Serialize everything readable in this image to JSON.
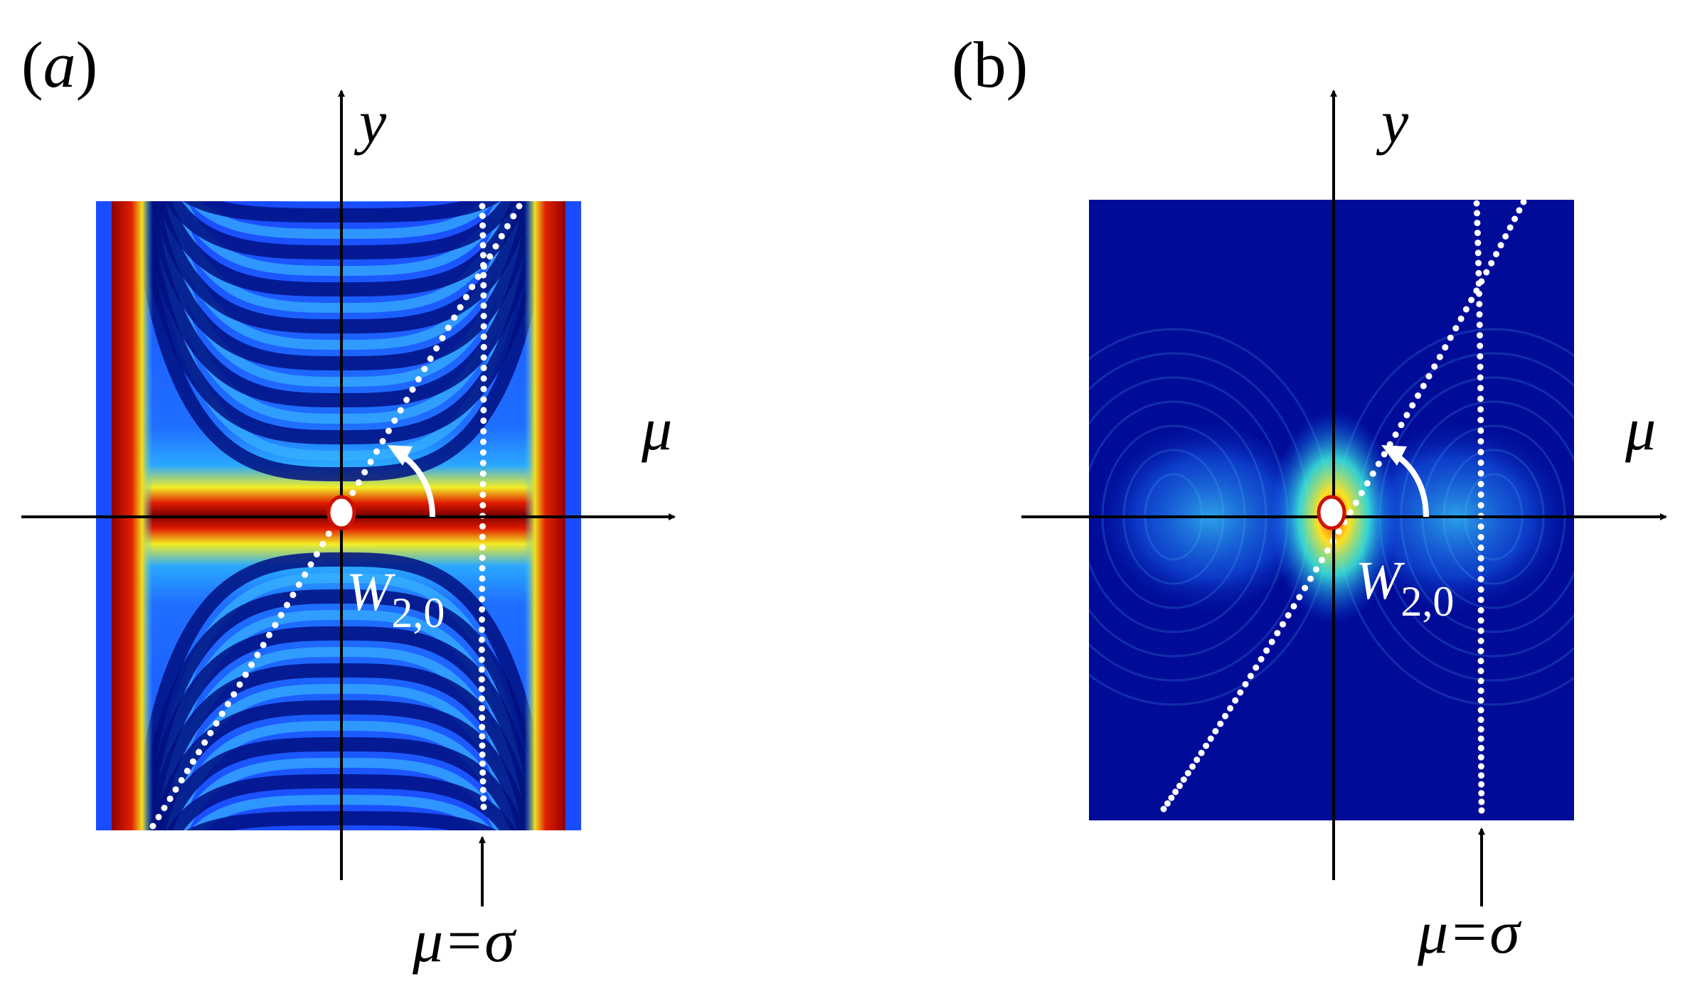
{
  "panel_a": {
    "label_open": "(",
    "label_letter": "a",
    "label_close": ")",
    "y_axis_label": "y",
    "x_axis_label": "μ",
    "point_label_main": "W",
    "point_label_sub": "2,0",
    "marker_label": "μ=σ"
  },
  "panel_b": {
    "label": "(b)",
    "y_axis_label": "y",
    "x_axis_label": "μ",
    "point_label_main": "W",
    "point_label_sub": "2,0",
    "marker_label": "μ=σ"
  },
  "colors": {
    "jet_dark_red": "#7a0000",
    "jet_red": "#e01000",
    "jet_yellow": "#f0f020",
    "jet_cyan": "#30c0ff",
    "jet_blue": "#1050ff",
    "jet_dark_blue": "#000090",
    "dots": "#ffffff",
    "axes": "#000000",
    "origin_ring": "#cc1100"
  }
}
